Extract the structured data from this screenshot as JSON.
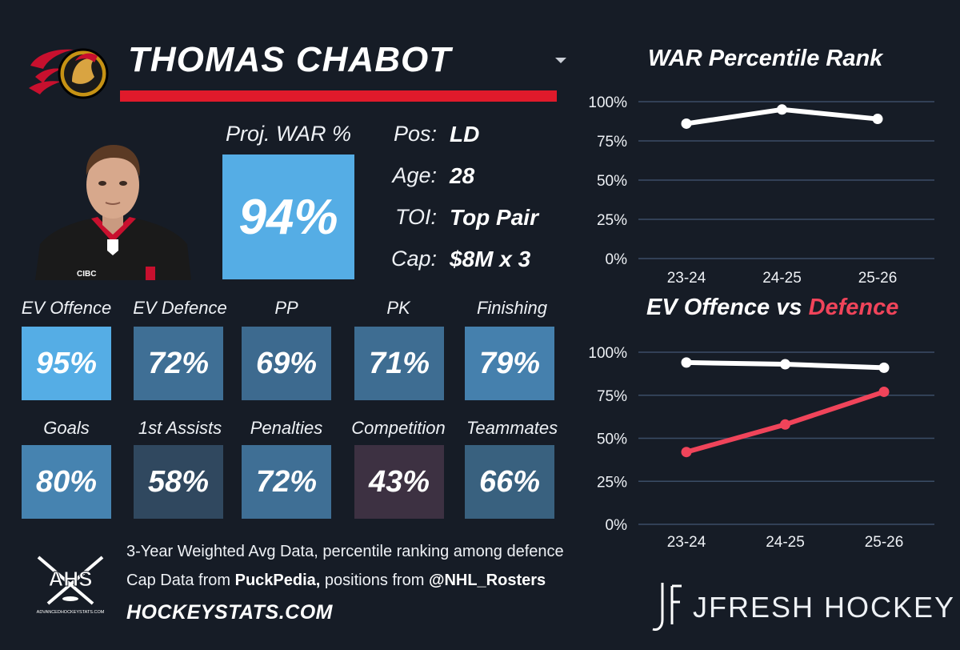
{
  "player": {
    "name": "THOMAS CHABOT",
    "proj_war_label": "Proj. WAR %",
    "proj_war_value": "94%",
    "proj_war_color": "#55ade5",
    "info": [
      {
        "label": "Pos:",
        "value": "LD"
      },
      {
        "label": "Age:",
        "value": "28"
      },
      {
        "label": "TOI:",
        "value": "Top Pair"
      },
      {
        "label": "Cap:",
        "value": "$8M x 3"
      }
    ]
  },
  "tiles_row1": [
    {
      "label": "EV Offence",
      "value": "95%",
      "color": "#55ade5"
    },
    {
      "label": "EV Defence",
      "value": "72%",
      "color": "#3f6f95"
    },
    {
      "label": "PP",
      "value": "69%",
      "color": "#3d6a8f"
    },
    {
      "label": "PK",
      "value": "71%",
      "color": "#3e6d92"
    },
    {
      "label": "Finishing",
      "value": "79%",
      "color": "#4580ad"
    }
  ],
  "tiles_row2": [
    {
      "label": "Goals",
      "value": "80%",
      "color": "#4683b0"
    },
    {
      "label": "1st Assists",
      "value": "58%",
      "color": "#30485f"
    },
    {
      "label": "Penalties",
      "value": "72%",
      "color": "#3f6f95"
    },
    {
      "label": "Competition",
      "value": "43%",
      "color": "#3d3142"
    },
    {
      "label": "Teammates",
      "value": "66%",
      "color": "#39617f"
    }
  ],
  "footer": {
    "line1": "3-Year Weighted Avg Data, percentile ranking among defence",
    "line2_prefix": "Cap Data from ",
    "line2_source1": "PuckPedia,",
    "line2_middle": " positions from ",
    "line2_source2": "@NHL_Rosters",
    "site": "HOCKEYSTATS.COM",
    "ahs_text": "AHS",
    "ahs_sub": "ADVANCEDHOCKEYSTATS.COM",
    "brand": "JFRESH HOCKEY"
  },
  "chart_data": [
    {
      "type": "line",
      "title": "WAR Percentile Rank",
      "categories": [
        "23-24",
        "24-25",
        "25-26"
      ],
      "yticks": [
        "100%",
        "75%",
        "50%",
        "25%",
        "0%"
      ],
      "ylim": [
        0,
        100
      ],
      "grid": true,
      "series": [
        {
          "values": [
            86,
            95,
            89
          ],
          "color": "#ffffff"
        }
      ]
    },
    {
      "type": "line",
      "title_part1": "EV Offence vs ",
      "title_part2": "Defence",
      "title_part2_color": "#f0445a",
      "categories": [
        "23-24",
        "24-25",
        "25-26"
      ],
      "yticks": [
        "100%",
        "75%",
        "50%",
        "25%",
        "0%"
      ],
      "ylim": [
        0,
        100
      ],
      "grid": true,
      "series": [
        {
          "values": [
            94,
            93,
            91
          ],
          "color": "#ffffff"
        },
        {
          "values": [
            42,
            58,
            77
          ],
          "color": "#f0445a"
        }
      ]
    }
  ]
}
